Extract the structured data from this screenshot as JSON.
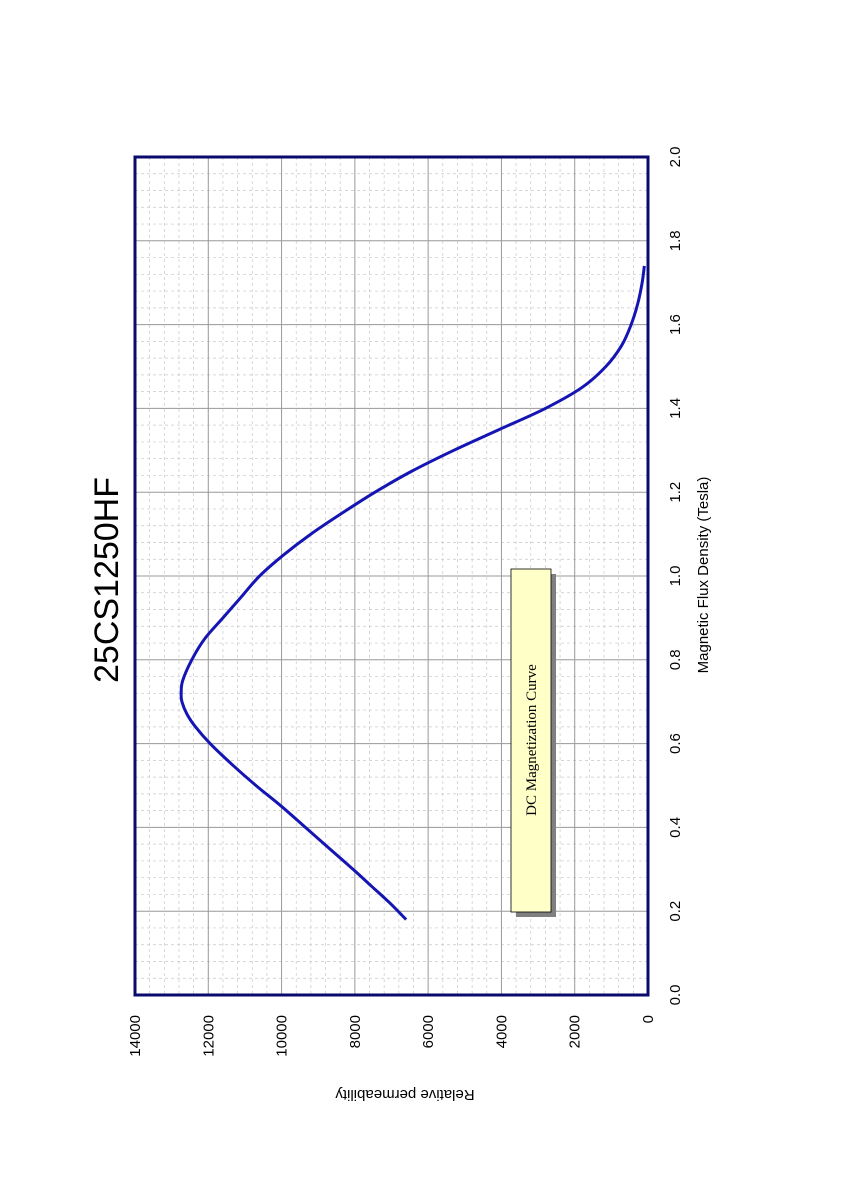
{
  "chart_data": {
    "type": "line",
    "title": "25CS1250HF",
    "xlabel": "Magnetic Flux Density (Tesla)",
    "ylabel": "Relative permeability",
    "annotation": "DC Magnetization Curve",
    "xlim": [
      0.0,
      2.0
    ],
    "ylim": [
      0,
      14000
    ],
    "x_ticks": [
      "0.0",
      "0.2",
      "0.4",
      "0.6",
      "0.8",
      "1.0",
      "1.2",
      "1.4",
      "1.6",
      "1.8",
      "2.0"
    ],
    "y_ticks": [
      "0",
      "2000",
      "4000",
      "6000",
      "8000",
      "10000",
      "12000",
      "14000"
    ],
    "grid": true,
    "orientation": "rotated 90° counter-clockwise",
    "colors": {
      "frame": "#0a0a6e",
      "curve": "#1515b4",
      "annotation_fill": "#ffffc8"
    },
    "series": [
      {
        "x": [
          0.18,
          0.22,
          0.26,
          0.3,
          0.35,
          0.4,
          0.45,
          0.5,
          0.55,
          0.6,
          0.64,
          0.67,
          0.7,
          0.72,
          0.75,
          0.8,
          0.85,
          0.9,
          0.95,
          1.0,
          1.05,
          1.1,
          1.15,
          1.2,
          1.25,
          1.3,
          1.35,
          1.4,
          1.45,
          1.5,
          1.55,
          1.6,
          1.65,
          1.7,
          1.74
        ],
        "y": [
          6600,
          7050,
          7550,
          8050,
          8700,
          9350,
          10000,
          10700,
          11350,
          11950,
          12350,
          12580,
          12720,
          12740,
          12700,
          12450,
          12100,
          11600,
          11100,
          10600,
          9950,
          9200,
          8350,
          7450,
          6450,
          5300,
          4050,
          2800,
          1800,
          1150,
          720,
          460,
          280,
          160,
          100
        ]
      }
    ]
  }
}
